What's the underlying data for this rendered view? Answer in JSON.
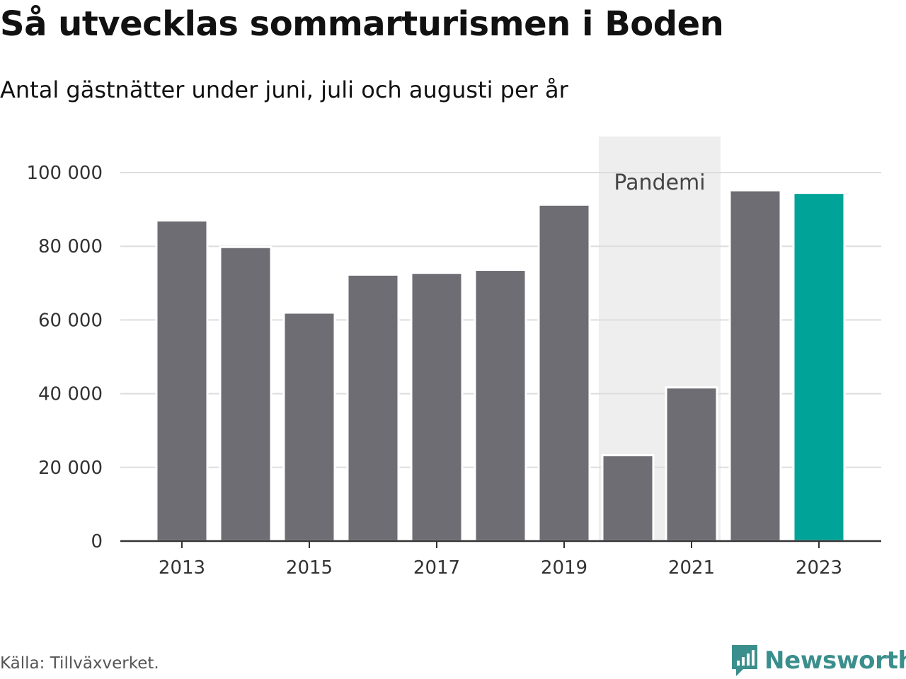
{
  "header": {
    "title": "Så utvecklas sommarturismen i Boden",
    "subtitle": "Antal gästnätter under juni, juli och augusti per år"
  },
  "footer": {
    "source": "Källa: Tillväxverket.",
    "brand": "Newsworthy"
  },
  "colors": {
    "bar": "#6e6d74",
    "highlight": "#00a398",
    "band": "#eeeeee",
    "grid": "#dddddd",
    "axis": "#333333",
    "brand": "#3a8f8c"
  },
  "chart_data": {
    "type": "bar",
    "title": "Så utvecklas sommarturismen i Boden",
    "subtitle": "Antal gästnätter under juni, juli och augusti per år",
    "categories": [
      2013,
      2014,
      2015,
      2016,
      2017,
      2018,
      2019,
      2020,
      2021,
      2022,
      2023
    ],
    "values": [
      87000,
      79800,
      62000,
      72300,
      72800,
      73600,
      91300,
      23300,
      41700,
      95200,
      94500
    ],
    "highlight_index": 10,
    "ylim": [
      0,
      100000
    ],
    "yticks": [
      0,
      20000,
      40000,
      60000,
      80000,
      100000
    ],
    "ytick_labels": [
      "0",
      "20 000",
      "40 000",
      "60 000",
      "80 000",
      "100 000"
    ],
    "xticks": [
      2013,
      2015,
      2017,
      2019,
      2021,
      2023
    ],
    "xtick_labels": [
      "2013",
      "2015",
      "2017",
      "2019",
      "2021",
      "2023"
    ],
    "grid": true,
    "annotations": [
      {
        "type": "band",
        "from": 2020,
        "to": 2021,
        "label": "Pandemi"
      }
    ]
  }
}
